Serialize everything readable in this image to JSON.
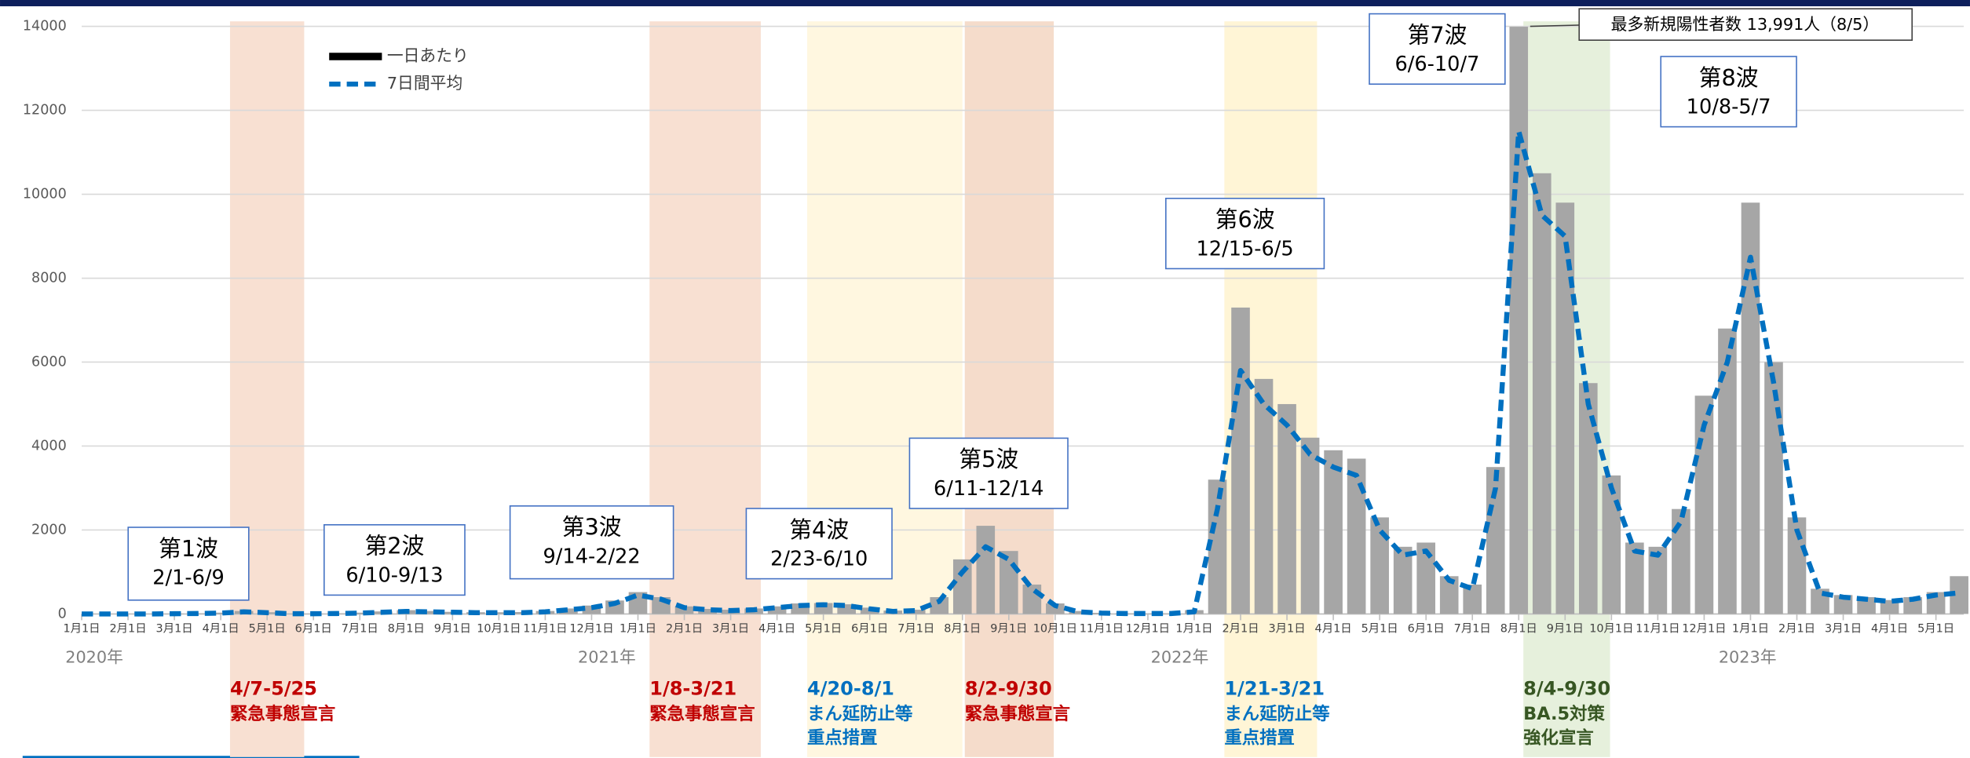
{
  "chart_data": {
    "type": "bar-line",
    "x": [
      0,
      0.5,
      1,
      1.5,
      2,
      2.5,
      3,
      3.5,
      4,
      4.5,
      5,
      5.5,
      6,
      6.5,
      7,
      7.5,
      8,
      8.5,
      9,
      9.5,
      10,
      10.5,
      11,
      11.5,
      12,
      12.5,
      13,
      13.5,
      14,
      14.5,
      15,
      15.5,
      16,
      16.5,
      17,
      17.5,
      18,
      18.5,
      19,
      19.5,
      20,
      20.5,
      21,
      21.5,
      22,
      22.5,
      23,
      23.5,
      24,
      24.5,
      25,
      25.5,
      26,
      26.5,
      27,
      27.5,
      28,
      28.5,
      29,
      29.5,
      30,
      30.5,
      31,
      31.5,
      32,
      32.5,
      33,
      33.5,
      34,
      34.5,
      35,
      35.5,
      36,
      36.5,
      37,
      37.5,
      38,
      38.5,
      39,
      39.5,
      40,
      40.5
    ],
    "series": [
      {
        "name": "一日あたり",
        "color": "#a6a6a6",
        "legend_color": "#000000",
        "values": [
          0,
          0,
          0,
          2,
          8,
          15,
          30,
          70,
          40,
          8,
          6,
          15,
          30,
          60,
          90,
          70,
          50,
          40,
          40,
          45,
          70,
          130,
          200,
          320,
          520,
          400,
          180,
          120,
          100,
          130,
          180,
          250,
          260,
          230,
          150,
          80,
          100,
          400,
          1300,
          2100,
          1500,
          700,
          250,
          70,
          25,
          15,
          12,
          15,
          90,
          3200,
          7300,
          5600,
          5000,
          4200,
          3900,
          3700,
          2300,
          1600,
          1700,
          900,
          700,
          3500,
          13991,
          10500,
          9800,
          5500,
          3300,
          1700,
          1600,
          2500,
          5200,
          6800,
          9800,
          6000,
          2300,
          600,
          450,
          400,
          330,
          400,
          520,
          900
        ]
      },
      {
        "name": "7日間平均",
        "color": "#0070c0",
        "values": [
          0,
          0,
          0,
          0,
          5,
          10,
          20,
          50,
          30,
          5,
          5,
          10,
          20,
          40,
          60,
          50,
          40,
          30,
          30,
          30,
          50,
          100,
          150,
          250,
          450,
          350,
          150,
          100,
          80,
          100,
          150,
          200,
          220,
          200,
          120,
          60,
          80,
          300,
          1000,
          1600,
          1300,
          600,
          200,
          50,
          20,
          10,
          10,
          10,
          50,
          2500,
          5800,
          5000,
          4500,
          3800,
          3500,
          3300,
          2000,
          1400,
          1500,
          800,
          600,
          3000,
          11500,
          9500,
          9000,
          5000,
          3000,
          1500,
          1400,
          2200,
          4500,
          6000,
          8500,
          5500,
          2000,
          500,
          400,
          350,
          300,
          350,
          450,
          500
        ]
      }
    ],
    "ylim": [
      0,
      14000
    ],
    "yticks": [
      0,
      2000,
      4000,
      6000,
      8000,
      10000,
      12000,
      14000
    ],
    "xlim": [
      0,
      40.6
    ],
    "xticks": [
      {
        "value": 0,
        "label": "1月1日"
      },
      {
        "value": 1,
        "label": "2月1日"
      },
      {
        "value": 2,
        "label": "3月1日"
      },
      {
        "value": 3,
        "label": "4月1日"
      },
      {
        "value": 4,
        "label": "5月1日"
      },
      {
        "value": 5,
        "label": "6月1日"
      },
      {
        "value": 6,
        "label": "7月1日"
      },
      {
        "value": 7,
        "label": "8月1日"
      },
      {
        "value": 8,
        "label": "9月1日"
      },
      {
        "value": 9,
        "label": "10月1日"
      },
      {
        "value": 10,
        "label": "11月1日"
      },
      {
        "value": 11,
        "label": "12月1日"
      },
      {
        "value": 12,
        "label": "1月1日"
      },
      {
        "value": 13,
        "label": "2月1日"
      },
      {
        "value": 14,
        "label": "3月1日"
      },
      {
        "value": 15,
        "label": "4月1日"
      },
      {
        "value": 16,
        "label": "5月1日"
      },
      {
        "value": 17,
        "label": "6月1日"
      },
      {
        "value": 18,
        "label": "7月1日"
      },
      {
        "value": 19,
        "label": "8月1日"
      },
      {
        "value": 20,
        "label": "9月1日"
      },
      {
        "value": 21,
        "label": "10月1日"
      },
      {
        "value": 22,
        "label": "11月1日"
      },
      {
        "value": 23,
        "label": "12月1日"
      },
      {
        "value": 24,
        "label": "1月1日"
      },
      {
        "value": 25,
        "label": "2月1日"
      },
      {
        "value": 26,
        "label": "3月1日"
      },
      {
        "value": 27,
        "label": "4月1日"
      },
      {
        "value": 28,
        "label": "5月1日"
      },
      {
        "value": 29,
        "label": "6月1日"
      },
      {
        "value": 30,
        "label": "7月1日"
      },
      {
        "value": 31,
        "label": "8月1日"
      },
      {
        "value": 32,
        "label": "9月1日"
      },
      {
        "value": 33,
        "label": "10月1日"
      },
      {
        "value": 34,
        "label": "11月1日"
      },
      {
        "value": 35,
        "label": "12月1日"
      },
      {
        "value": 36,
        "label": "1月1日"
      },
      {
        "value": 37,
        "label": "2月1日"
      },
      {
        "value": 38,
        "label": "3月1日"
      },
      {
        "value": 39,
        "label": "4月1日"
      },
      {
        "value": 40,
        "label": "5月1日"
      }
    ],
    "year_labels": [
      "2020年",
      "2021年",
      "2022年",
      "2023年"
    ],
    "grid": true,
    "legend": "top-left",
    "periods": [
      {
        "date": "4/7-5/25",
        "text": [
          "緊急事態宣言"
        ],
        "start": 3.2,
        "end": 4.8,
        "fill": "#f8e0d2",
        "color": "#c00000"
      },
      {
        "date": "1/8-3/21",
        "text": [
          "緊急事態宣言"
        ],
        "start": 12.25,
        "end": 14.65,
        "fill": "#f8e0d2",
        "color": "#c00000"
      },
      {
        "date": "4/20-8/1",
        "text": [
          "まん延防止等",
          "重点措置"
        ],
        "start": 15.65,
        "end": 19.0,
        "fill": "#fff7e0",
        "color": "#0070c0"
      },
      {
        "date": "8/2-9/30",
        "text": [
          "緊急事態宣言"
        ],
        "start": 19.05,
        "end": 20.97,
        "fill": "#f5dccb",
        "color": "#c00000"
      },
      {
        "date": "1/21-3/21",
        "text": [
          "まん延防止等",
          "重点措置"
        ],
        "start": 24.65,
        "end": 26.65,
        "fill": "#fff5d6",
        "color": "#0070c0"
      },
      {
        "date": "8/4-9/30",
        "text": [
          "BA.5対策",
          "強化宣言"
        ],
        "start": 31.1,
        "end": 32.97,
        "fill": "#e6f0dc",
        "color": "#375623"
      }
    ],
    "waves": [
      {
        "name": "第1波",
        "range": "2/1-6/9"
      },
      {
        "name": "第2波",
        "range": "6/10-9/13"
      },
      {
        "name": "第3波",
        "range": "9/14-2/22"
      },
      {
        "name": "第4波",
        "range": "2/23-6/10"
      },
      {
        "name": "第5波",
        "range": "6/11-12/14"
      },
      {
        "name": "第6波",
        "range": "12/15-6/5"
      },
      {
        "name": "第7波",
        "range": "6/6-10/7"
      },
      {
        "name": "第8波",
        "range": "10/8-5/7"
      }
    ],
    "max_annotation": "最多新規陽性者数  13,991人（8/5）"
  }
}
